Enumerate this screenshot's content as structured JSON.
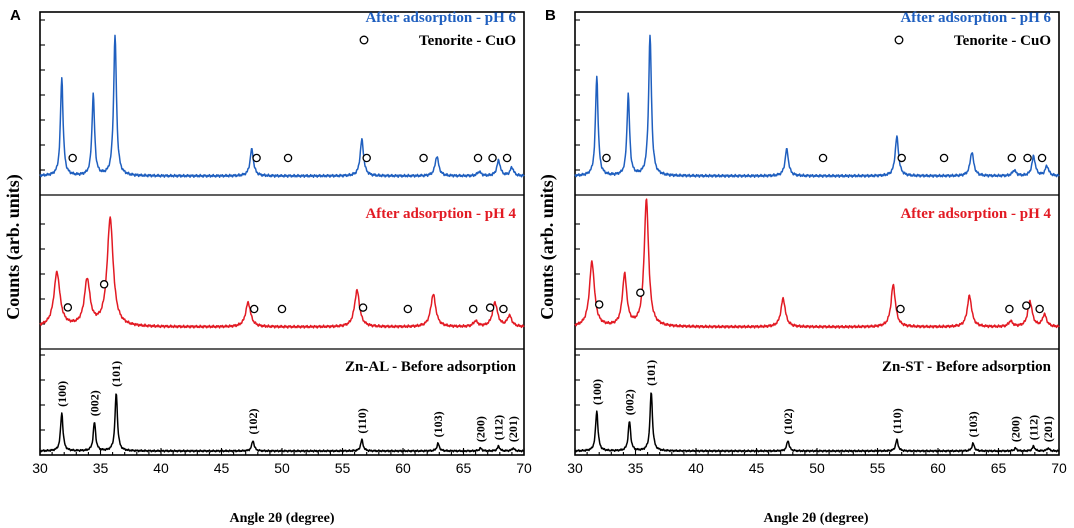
{
  "figure": {
    "x_axis_label": "Angle 2θ (degree)",
    "y_axis_label": "Counts (arb. units)",
    "tenorite_legend": "Tenorite - CuO",
    "colors": {
      "ph6": "#1f5fbf",
      "ph4": "#e21a23",
      "before": "#000000"
    }
  },
  "chart_data": [
    {
      "panel_label": "A",
      "type": "line",
      "xlabel": "Angle 2θ (degree)",
      "ylabel": "Counts (arb. units)",
      "xlim": [
        30,
        70
      ],
      "xticks": [
        30,
        35,
        40,
        45,
        50,
        55,
        60,
        65,
        70
      ],
      "legend": "Tenorite - CuO",
      "series": [
        {
          "name": "After adsorption - pH 6",
          "color": "#1f5fbf",
          "peaks": [
            [
              31.8,
              0.7,
              0.13
            ],
            [
              34.4,
              0.58,
              0.13
            ],
            [
              36.2,
              1.0,
              0.14
            ],
            [
              47.5,
              0.19,
              0.17
            ],
            [
              56.6,
              0.26,
              0.17
            ],
            [
              62.8,
              0.14,
              0.18
            ],
            [
              66.3,
              0.03,
              0.18
            ],
            [
              67.9,
              0.11,
              0.17
            ],
            [
              69.0,
              0.06,
              0.17
            ]
          ],
          "tenorite_markers": [
            32.7,
            47.9,
            50.5,
            57.0,
            61.7,
            66.2,
            67.4,
            68.6
          ]
        },
        {
          "name": "After adsorption - pH 4",
          "color": "#e21a23",
          "peaks": [
            [
              31.4,
              0.4,
              0.3
            ],
            [
              33.9,
              0.34,
              0.28
            ],
            [
              35.8,
              0.8,
              0.3
            ],
            [
              47.2,
              0.18,
              0.25
            ],
            [
              56.2,
              0.27,
              0.25
            ],
            [
              62.5,
              0.24,
              0.25
            ],
            [
              66.0,
              0.04,
              0.22
            ],
            [
              67.6,
              0.18,
              0.25
            ],
            [
              68.8,
              0.08,
              0.22
            ]
          ],
          "tenorite_markers": [
            32.3,
            35.3,
            47.7,
            50.0,
            56.7,
            60.4,
            65.8,
            67.2,
            68.3
          ]
        },
        {
          "name": "Zn-AL - Before adsorption",
          "color": "#000000",
          "peaks": [
            [
              31.8,
              0.4,
              0.12
            ],
            [
              34.5,
              0.3,
              0.12
            ],
            [
              36.3,
              0.61,
              0.12
            ],
            [
              47.6,
              0.11,
              0.12
            ],
            [
              56.6,
              0.12,
              0.12
            ],
            [
              62.9,
              0.08,
              0.12
            ],
            [
              66.4,
              0.03,
              0.12
            ],
            [
              67.9,
              0.05,
              0.12
            ],
            [
              69.1,
              0.03,
              0.12
            ]
          ],
          "reflections": [
            {
              "hkl": "(100)",
              "x": 31.8
            },
            {
              "hkl": "(002)",
              "x": 34.5
            },
            {
              "hkl": "(101)",
              "x": 36.3
            },
            {
              "hkl": "(102)",
              "x": 47.6
            },
            {
              "hkl": "(110)",
              "x": 56.6
            },
            {
              "hkl": "(103)",
              "x": 62.9
            },
            {
              "hkl": "(200)",
              "x": 66.4
            },
            {
              "hkl": "(112)",
              "x": 67.9
            },
            {
              "hkl": "(201)",
              "x": 69.1
            }
          ]
        }
      ]
    },
    {
      "panel_label": "B",
      "type": "line",
      "xlabel": "Angle 2θ (degree)",
      "ylabel": "Counts (arb. units)",
      "xlim": [
        30,
        70
      ],
      "xticks": [
        30,
        35,
        40,
        45,
        50,
        55,
        60,
        65,
        70
      ],
      "legend": "Tenorite - CuO",
      "series": [
        {
          "name": "After adsorption - pH 6",
          "color": "#1f5fbf",
          "peaks": [
            [
              31.8,
              0.71,
              0.13
            ],
            [
              34.4,
              0.58,
              0.13
            ],
            [
              36.2,
              1.0,
              0.14
            ],
            [
              47.5,
              0.19,
              0.17
            ],
            [
              56.6,
              0.28,
              0.17
            ],
            [
              62.8,
              0.17,
              0.18
            ],
            [
              66.3,
              0.04,
              0.18
            ],
            [
              67.9,
              0.14,
              0.17
            ],
            [
              69.0,
              0.07,
              0.17
            ]
          ],
          "tenorite_markers": [
            32.6,
            50.5,
            57.0,
            60.5,
            66.1,
            67.4,
            68.6
          ]
        },
        {
          "name": "After adsorption - pH 4",
          "color": "#e21a23",
          "peaks": [
            [
              31.4,
              0.48,
              0.25
            ],
            [
              34.1,
              0.38,
              0.22
            ],
            [
              35.9,
              0.94,
              0.22
            ],
            [
              47.2,
              0.21,
              0.22
            ],
            [
              56.3,
              0.31,
              0.22
            ],
            [
              62.6,
              0.23,
              0.22
            ],
            [
              66.0,
              0.04,
              0.2
            ],
            [
              67.6,
              0.19,
              0.22
            ],
            [
              68.8,
              0.09,
              0.2
            ]
          ],
          "tenorite_markers": [
            32.0,
            35.4,
            56.9,
            65.9,
            67.3,
            68.4
          ]
        },
        {
          "name": "Zn-ST - Before adsorption",
          "color": "#000000",
          "peaks": [
            [
              31.8,
              0.42,
              0.12
            ],
            [
              34.5,
              0.31,
              0.12
            ],
            [
              36.3,
              0.62,
              0.12
            ],
            [
              47.6,
              0.11,
              0.12
            ],
            [
              56.6,
              0.12,
              0.12
            ],
            [
              62.9,
              0.08,
              0.12
            ],
            [
              66.4,
              0.03,
              0.12
            ],
            [
              67.9,
              0.05,
              0.12
            ],
            [
              69.1,
              0.03,
              0.12
            ]
          ],
          "reflections": [
            {
              "hkl": "(100)",
              "x": 31.8
            },
            {
              "hkl": "(002)",
              "x": 34.5
            },
            {
              "hkl": "(101)",
              "x": 36.3
            },
            {
              "hkl": "(102)",
              "x": 47.6
            },
            {
              "hkl": "(110)",
              "x": 56.6
            },
            {
              "hkl": "(103)",
              "x": 62.9
            },
            {
              "hkl": "(200)",
              "x": 66.4
            },
            {
              "hkl": "(112)",
              "x": 67.9
            },
            {
              "hkl": "(201)",
              "x": 69.1
            }
          ]
        }
      ]
    }
  ]
}
